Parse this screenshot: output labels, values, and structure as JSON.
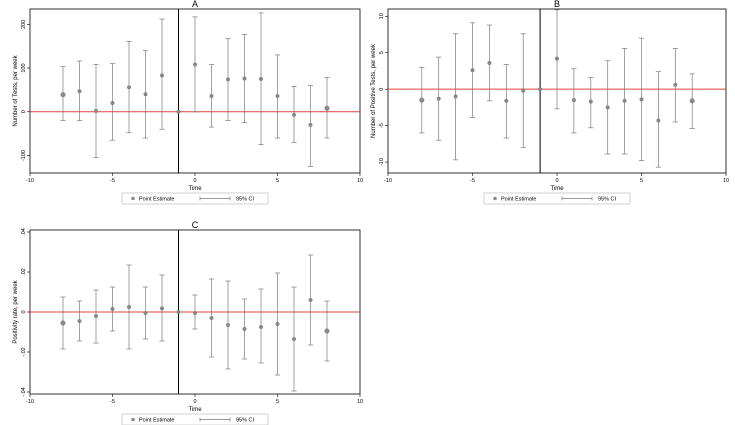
{
  "panels": [
    {
      "type": "scatter",
      "panel_label": "A",
      "title": "A",
      "xlabel": "Time",
      "ylabel": "Number of Tests, per week",
      "xlim": [
        -10,
        10
      ],
      "ylim": [
        -140,
        235
      ],
      "xticks": [
        -10,
        -5,
        0,
        5,
        10
      ],
      "yticks": [
        -100,
        0,
        100,
        200
      ],
      "xtick_labels": [
        "-10",
        "-5",
        "0",
        "5",
        "10"
      ],
      "ytick_labels": [
        "-100",
        "0",
        "100",
        "200"
      ],
      "event_line_x": -1,
      "reference_line_y": 0,
      "legend": {
        "point_label": "Point Estimate",
        "ci_label": "95% CI",
        "position": "bottom-center"
      },
      "series": [
        {
          "name": "Point Estimate",
          "x": [
            -8,
            -7,
            -6,
            -5,
            -4,
            -3,
            -2,
            -1,
            0,
            1,
            2,
            3,
            4,
            5,
            6,
            7,
            8
          ],
          "values": [
            39,
            47,
            2,
            20,
            56,
            40,
            83,
            0,
            108,
            36,
            74,
            76,
            75,
            36,
            -7,
            -30,
            8
          ]
        },
        {
          "name": "95% CI",
          "x": [
            -8,
            -7,
            -6,
            -5,
            -4,
            -3,
            -2,
            -1,
            0,
            1,
            2,
            3,
            4,
            5,
            6,
            7,
            8
          ],
          "low": [
            -20,
            -20,
            -105,
            -65,
            -48,
            -60,
            -40,
            0,
            0,
            -35,
            -20,
            -25,
            -75,
            -60,
            -70,
            -125,
            -60
          ],
          "high": [
            103,
            116,
            108,
            110,
            161,
            140,
            212,
            0,
            217,
            108,
            167,
            177,
            226,
            130,
            58,
            60,
            78
          ]
        }
      ]
    },
    {
      "type": "scatter",
      "panel_label": "B",
      "title": "B",
      "xlabel": "Time",
      "ylabel": "Number of Positive Tests, per week",
      "xlim": [
        -10,
        10
      ],
      "ylim": [
        -11.5,
        11
      ],
      "xticks": [
        -10,
        -5,
        0,
        5,
        10
      ],
      "yticks": [
        -10,
        -5,
        0,
        5,
        10
      ],
      "xtick_labels": [
        "-10",
        "-5",
        "0",
        "5",
        "10"
      ],
      "ytick_labels": [
        "-10",
        "-5",
        "0",
        "5",
        "10"
      ],
      "event_line_x": -1,
      "reference_line_y": 0,
      "legend": {
        "point_label": "Point Estimate",
        "ci_label": "95% CI",
        "position": "bottom-center"
      },
      "series": [
        {
          "name": "Point Estimate",
          "x": [
            -8,
            -7,
            -6,
            -5,
            -4,
            -3,
            -2,
            -1,
            0,
            1,
            2,
            3,
            4,
            5,
            6,
            7,
            8
          ],
          "values": [
            -1.5,
            -1.3,
            -1.0,
            2.6,
            3.6,
            -1.6,
            -0.2,
            0,
            4.2,
            -1.5,
            -1.7,
            -2.5,
            -1.6,
            -1.4,
            -4.3,
            0.6,
            -1.6
          ]
        },
        {
          "name": "95% CI",
          "x": [
            -8,
            -7,
            -6,
            -5,
            -4,
            -3,
            -2,
            -1,
            0,
            1,
            2,
            3,
            4,
            5,
            6,
            7,
            8
          ],
          "low": [
            -6.0,
            -7.0,
            -9.7,
            -3.9,
            -1.6,
            -6.7,
            -8.0,
            0,
            -2.7,
            -6.0,
            -5.3,
            -8.9,
            -8.9,
            -9.8,
            -10.7,
            -4.5,
            -5.4
          ],
          "high": [
            3.0,
            4.4,
            7.6,
            9.1,
            8.8,
            3.4,
            7.6,
            0,
            10.9,
            2.8,
            1.6,
            3.9,
            5.6,
            7.0,
            2.4,
            5.6,
            2.1
          ]
        }
      ]
    },
    {
      "type": "scatter",
      "panel_label": "C",
      "title": "C",
      "xlabel": "Time",
      "ylabel": "Positivity rate, per week",
      "xlim": [
        -10,
        10
      ],
      "ylim": [
        -0.041,
        0.041
      ],
      "xticks": [
        -10,
        -5,
        0,
        5,
        10
      ],
      "yticks": [
        -0.04,
        -0.02,
        0,
        0.02,
        0.04
      ],
      "xtick_labels": [
        "-10",
        "-5",
        "0",
        "5",
        "10"
      ],
      "ytick_labels": [
        "-.04",
        "-.02",
        "0",
        ".02",
        ".04"
      ],
      "event_line_x": -1,
      "reference_line_y": 0,
      "legend": {
        "point_label": "Point Estimate",
        "ci_label": "95% CI",
        "position": "bottom-center"
      },
      "series": [
        {
          "name": "Point Estimate",
          "x": [
            -8,
            -7,
            -6,
            -5,
            -4,
            -3,
            -2,
            -1,
            0,
            1,
            2,
            3,
            4,
            5,
            6,
            7,
            8
          ],
          "values": [
            -0.0055,
            -0.0045,
            -0.002,
            0.0015,
            0.0025,
            -0.0005,
            0.0018,
            0,
            -0.0005,
            -0.003,
            -0.0065,
            -0.0085,
            -0.0075,
            -0.006,
            -0.0135,
            0.006,
            -0.0095
          ]
        },
        {
          "name": "95% CI",
          "x": [
            -8,
            -7,
            -6,
            -5,
            -4,
            -3,
            -2,
            -1,
            0,
            1,
            2,
            3,
            4,
            5,
            6,
            7,
            8
          ],
          "low": [
            -0.0185,
            -0.0145,
            -0.0155,
            -0.0095,
            -0.0185,
            -0.0135,
            -0.0145,
            0,
            -0.0085,
            -0.0225,
            -0.0285,
            -0.0235,
            -0.0255,
            -0.0315,
            -0.0395,
            -0.0165,
            -0.0245
          ],
          "high": [
            0.0075,
            0.0055,
            0.011,
            0.0125,
            0.0235,
            0.0125,
            0.0185,
            0,
            0.0085,
            0.0165,
            0.0155,
            0.0065,
            0.0115,
            0.0195,
            0.0125,
            0.0285,
            0.0055
          ]
        }
      ]
    }
  ],
  "colors": {
    "point": "#8a8a8a",
    "point_edge": "#6f6f6f",
    "ci": "#7a7a7a",
    "reference_line": "#e0403b",
    "event_line": "#000000",
    "axis": "#000000",
    "legend_border": "#b5b5b5",
    "text": "#000000"
  }
}
